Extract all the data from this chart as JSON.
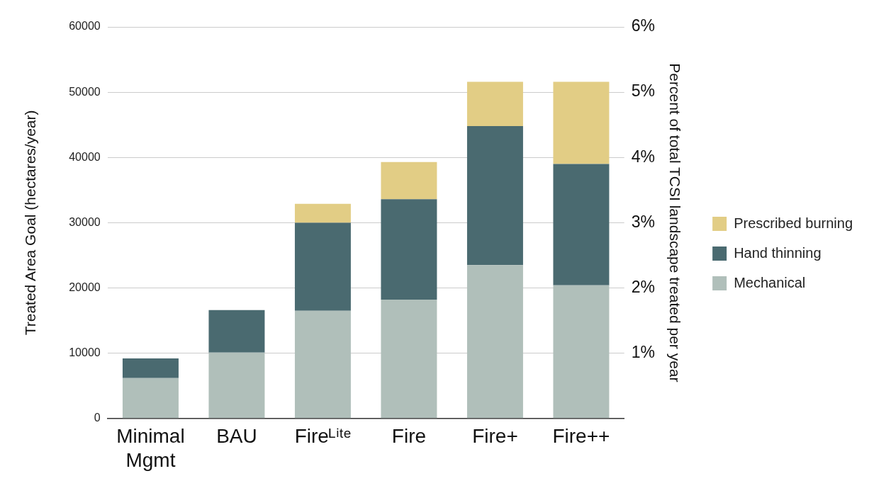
{
  "chart_data": {
    "type": "bar",
    "stacked": true,
    "categories": [
      "Minimal Mgmt",
      "BAU",
      "Fireᴸⁱᵗᵉ",
      "Fire",
      "Fire+",
      "Fire++"
    ],
    "series": [
      {
        "name": "Mechanical",
        "color": "#b0bfba",
        "values": [
          6200,
          10100,
          16500,
          18200,
          23500,
          20400
        ]
      },
      {
        "name": "Hand thinning",
        "color": "#4a6a70",
        "values": [
          3000,
          6500,
          13500,
          15400,
          21300,
          18600
        ]
      },
      {
        "name": "Prescribed burning",
        "color": "#e2cd85",
        "values": [
          null,
          null,
          2900,
          5700,
          6800,
          12600
        ]
      }
    ],
    "ylabel": "Treated Area Goal (hectares/year)",
    "y2label": "Percent of total TCSI landscape treated per year",
    "ylim": [
      0,
      60000
    ],
    "yticks": [
      0,
      10000,
      20000,
      30000,
      40000,
      50000,
      60000
    ],
    "y2lim": [
      0,
      6
    ],
    "y2ticks": [
      {
        "value": 1,
        "label": "1%"
      },
      {
        "value": 2,
        "label": "2%"
      },
      {
        "value": 3,
        "label": "3%"
      },
      {
        "value": 4,
        "label": "4%"
      },
      {
        "value": 5,
        "label": "5%"
      },
      {
        "value": 6,
        "label": "6%"
      }
    ],
    "grid": "y",
    "legend": "right"
  }
}
